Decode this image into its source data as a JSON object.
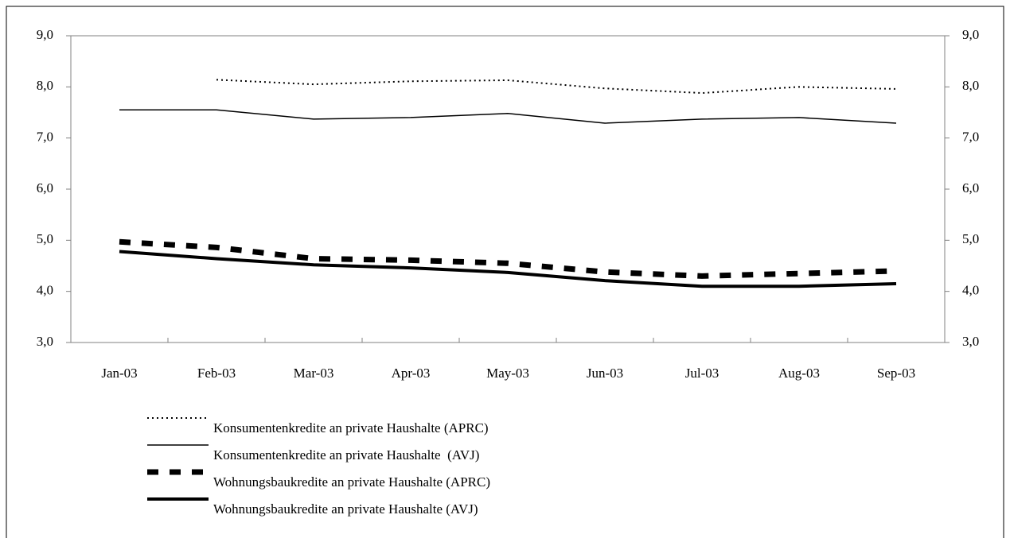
{
  "chart_data": {
    "type": "line",
    "categories": [
      "Jan-03",
      "Feb-03",
      "Mar-03",
      "Apr-03",
      "May-03",
      "Jun-03",
      "Jul-03",
      "Aug-03",
      "Sep-03"
    ],
    "series": [
      {
        "name": "Konsumentenkredite an private Haushalte (APRC)",
        "color": "#000000",
        "line_style": "dotted",
        "values": [
          null,
          8.14,
          8.05,
          8.11,
          8.13,
          7.97,
          7.88,
          8.0,
          7.96
        ]
      },
      {
        "name": "Konsumentenkredite an private Haushalte  (AVJ)",
        "color": "#000000",
        "line_style": "solid",
        "values": [
          7.55,
          7.55,
          7.37,
          7.4,
          7.48,
          7.29,
          7.37,
          7.4,
          7.29
        ]
      },
      {
        "name": "Wohnungsbaukredite an private Haushalte (APRC)",
        "color": "#000000",
        "line_style": "dashed",
        "values": [
          4.97,
          4.86,
          4.64,
          4.61,
          4.55,
          4.38,
          4.3,
          4.35,
          4.4
        ]
      },
      {
        "name": "Wohnungsbaukredite an private Haushalte (AVJ)",
        "color": "#000000",
        "line_style": "thick",
        "values": [
          4.78,
          4.64,
          4.52,
          4.46,
          4.37,
          4.21,
          4.1,
          4.1,
          4.15
        ]
      }
    ],
    "ylim": [
      3,
      9
    ],
    "yticks": [
      {
        "value": 3,
        "label": "3,0"
      },
      {
        "value": 4,
        "label": "4,0"
      },
      {
        "value": 5,
        "label": "5,0"
      },
      {
        "value": 6,
        "label": "6,0"
      },
      {
        "value": 7,
        "label": "7,0"
      },
      {
        "value": 8,
        "label": "8,0"
      },
      {
        "value": 9,
        "label": "9,0"
      }
    ],
    "y2lim": [
      3,
      9
    ],
    "y2ticks": [
      {
        "value": 3,
        "label": "3,0"
      },
      {
        "value": 4,
        "label": "4,0"
      },
      {
        "value": 5,
        "label": "5,0"
      },
      {
        "value": 6,
        "label": "6,0"
      },
      {
        "value": 7,
        "label": "7,0"
      },
      {
        "value": 8,
        "label": "8,0"
      },
      {
        "value": 9,
        "label": "9,0"
      }
    ],
    "grid": false,
    "legend": "bottom"
  }
}
